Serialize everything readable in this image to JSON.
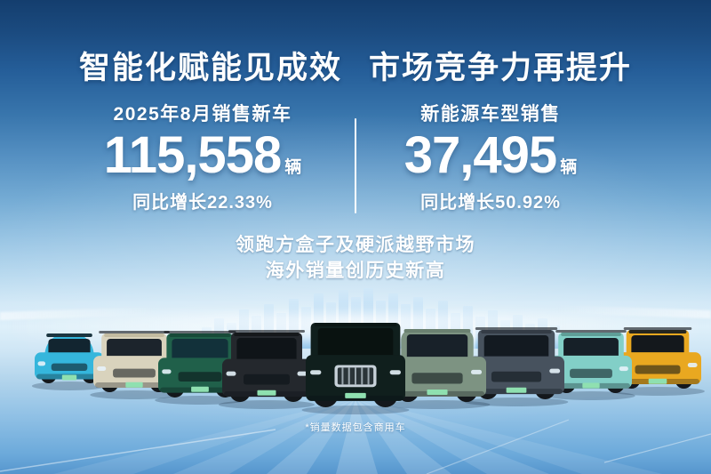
{
  "title": {
    "left": "智能化赋能见成效",
    "right": "市场竞争力再提升"
  },
  "stats": {
    "left": {
      "label": "2025年8月销售新车",
      "value": "115,558",
      "unit": "辆",
      "growth": "同比增长22.33%"
    },
    "right": {
      "label": "新能源车型销售",
      "value": "37,495",
      "unit": "辆",
      "growth": "同比增长50.92%"
    }
  },
  "highlight": {
    "line1": "领跑方盒子及硬派越野市场",
    "line2": "海外销量创历史新高"
  },
  "footnote": "*销量数据包含商用车",
  "colors": {
    "sky_top": "#143e6e",
    "sky_light": "#def0fa",
    "floor_bottom": "#5595cd",
    "text": "#ffffff",
    "divider": "#ffffff",
    "skyline_blue": "#7db9e8",
    "plate_green": "#8fe0b0"
  },
  "vehicles": [
    {
      "name": "cyan-hatchback",
      "body": "#35b6dc",
      "roof": "#1b3540",
      "window": "#122530"
    },
    {
      "name": "cream-offroad-suv",
      "body": "#d9d3bd",
      "roof": "#c2bba0",
      "window": "#1c242c"
    },
    {
      "name": "green-offroad-suv",
      "body": "#20604a",
      "roof": "#174a38",
      "window": "#12313a"
    },
    {
      "name": "black-offroad-suv",
      "body": "#24282d",
      "roof": "#15181b",
      "window": "#0f1418"
    },
    {
      "name": "luxury-mpv",
      "body": "#101f1d",
      "roof": "#0b1715",
      "window": "#091210",
      "grille": "#c7d1d9"
    },
    {
      "name": "sage-green-suv",
      "body": "#7d9382",
      "roof": "#6b8171",
      "window": "#182129"
    },
    {
      "name": "grey-blue-suv",
      "body": "#47525e",
      "roof": "#343c46",
      "window": "#131a21"
    },
    {
      "name": "mint-boxy-suv",
      "body": "#82cfc7",
      "roof": "#5f9e97",
      "window": "#162028"
    },
    {
      "name": "yellow-pickup",
      "body": "#e9a820",
      "roof": "#26261f",
      "window": "#14181c"
    }
  ]
}
